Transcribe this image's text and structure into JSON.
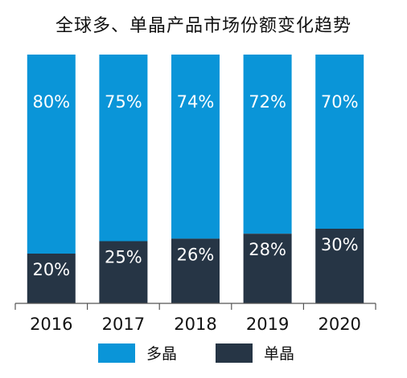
{
  "title": "全球多、单晶产品市场份额变化趋势",
  "colors": {
    "multi": "#0a95d8",
    "mono": "#263545",
    "axis": "#555555"
  },
  "chart_data": {
    "type": "bar",
    "stacked": true,
    "normalized": true,
    "categories": [
      "2016",
      "2017",
      "2018",
      "2019",
      "2020"
    ],
    "series": [
      {
        "name": "单晶",
        "values": [
          20,
          25,
          26,
          28,
          30
        ],
        "labels": [
          "20%",
          "25%",
          "26%",
          "28%",
          "30%"
        ]
      },
      {
        "name": "多晶",
        "values": [
          80,
          75,
          74,
          72,
          70
        ],
        "labels": [
          "80%",
          "75%",
          "74%",
          "72%",
          "70%"
        ]
      }
    ],
    "ylim": [
      0,
      100
    ],
    "grid": false,
    "legend": {
      "position": "bottom",
      "entries": [
        "多晶",
        "单晶"
      ]
    }
  }
}
